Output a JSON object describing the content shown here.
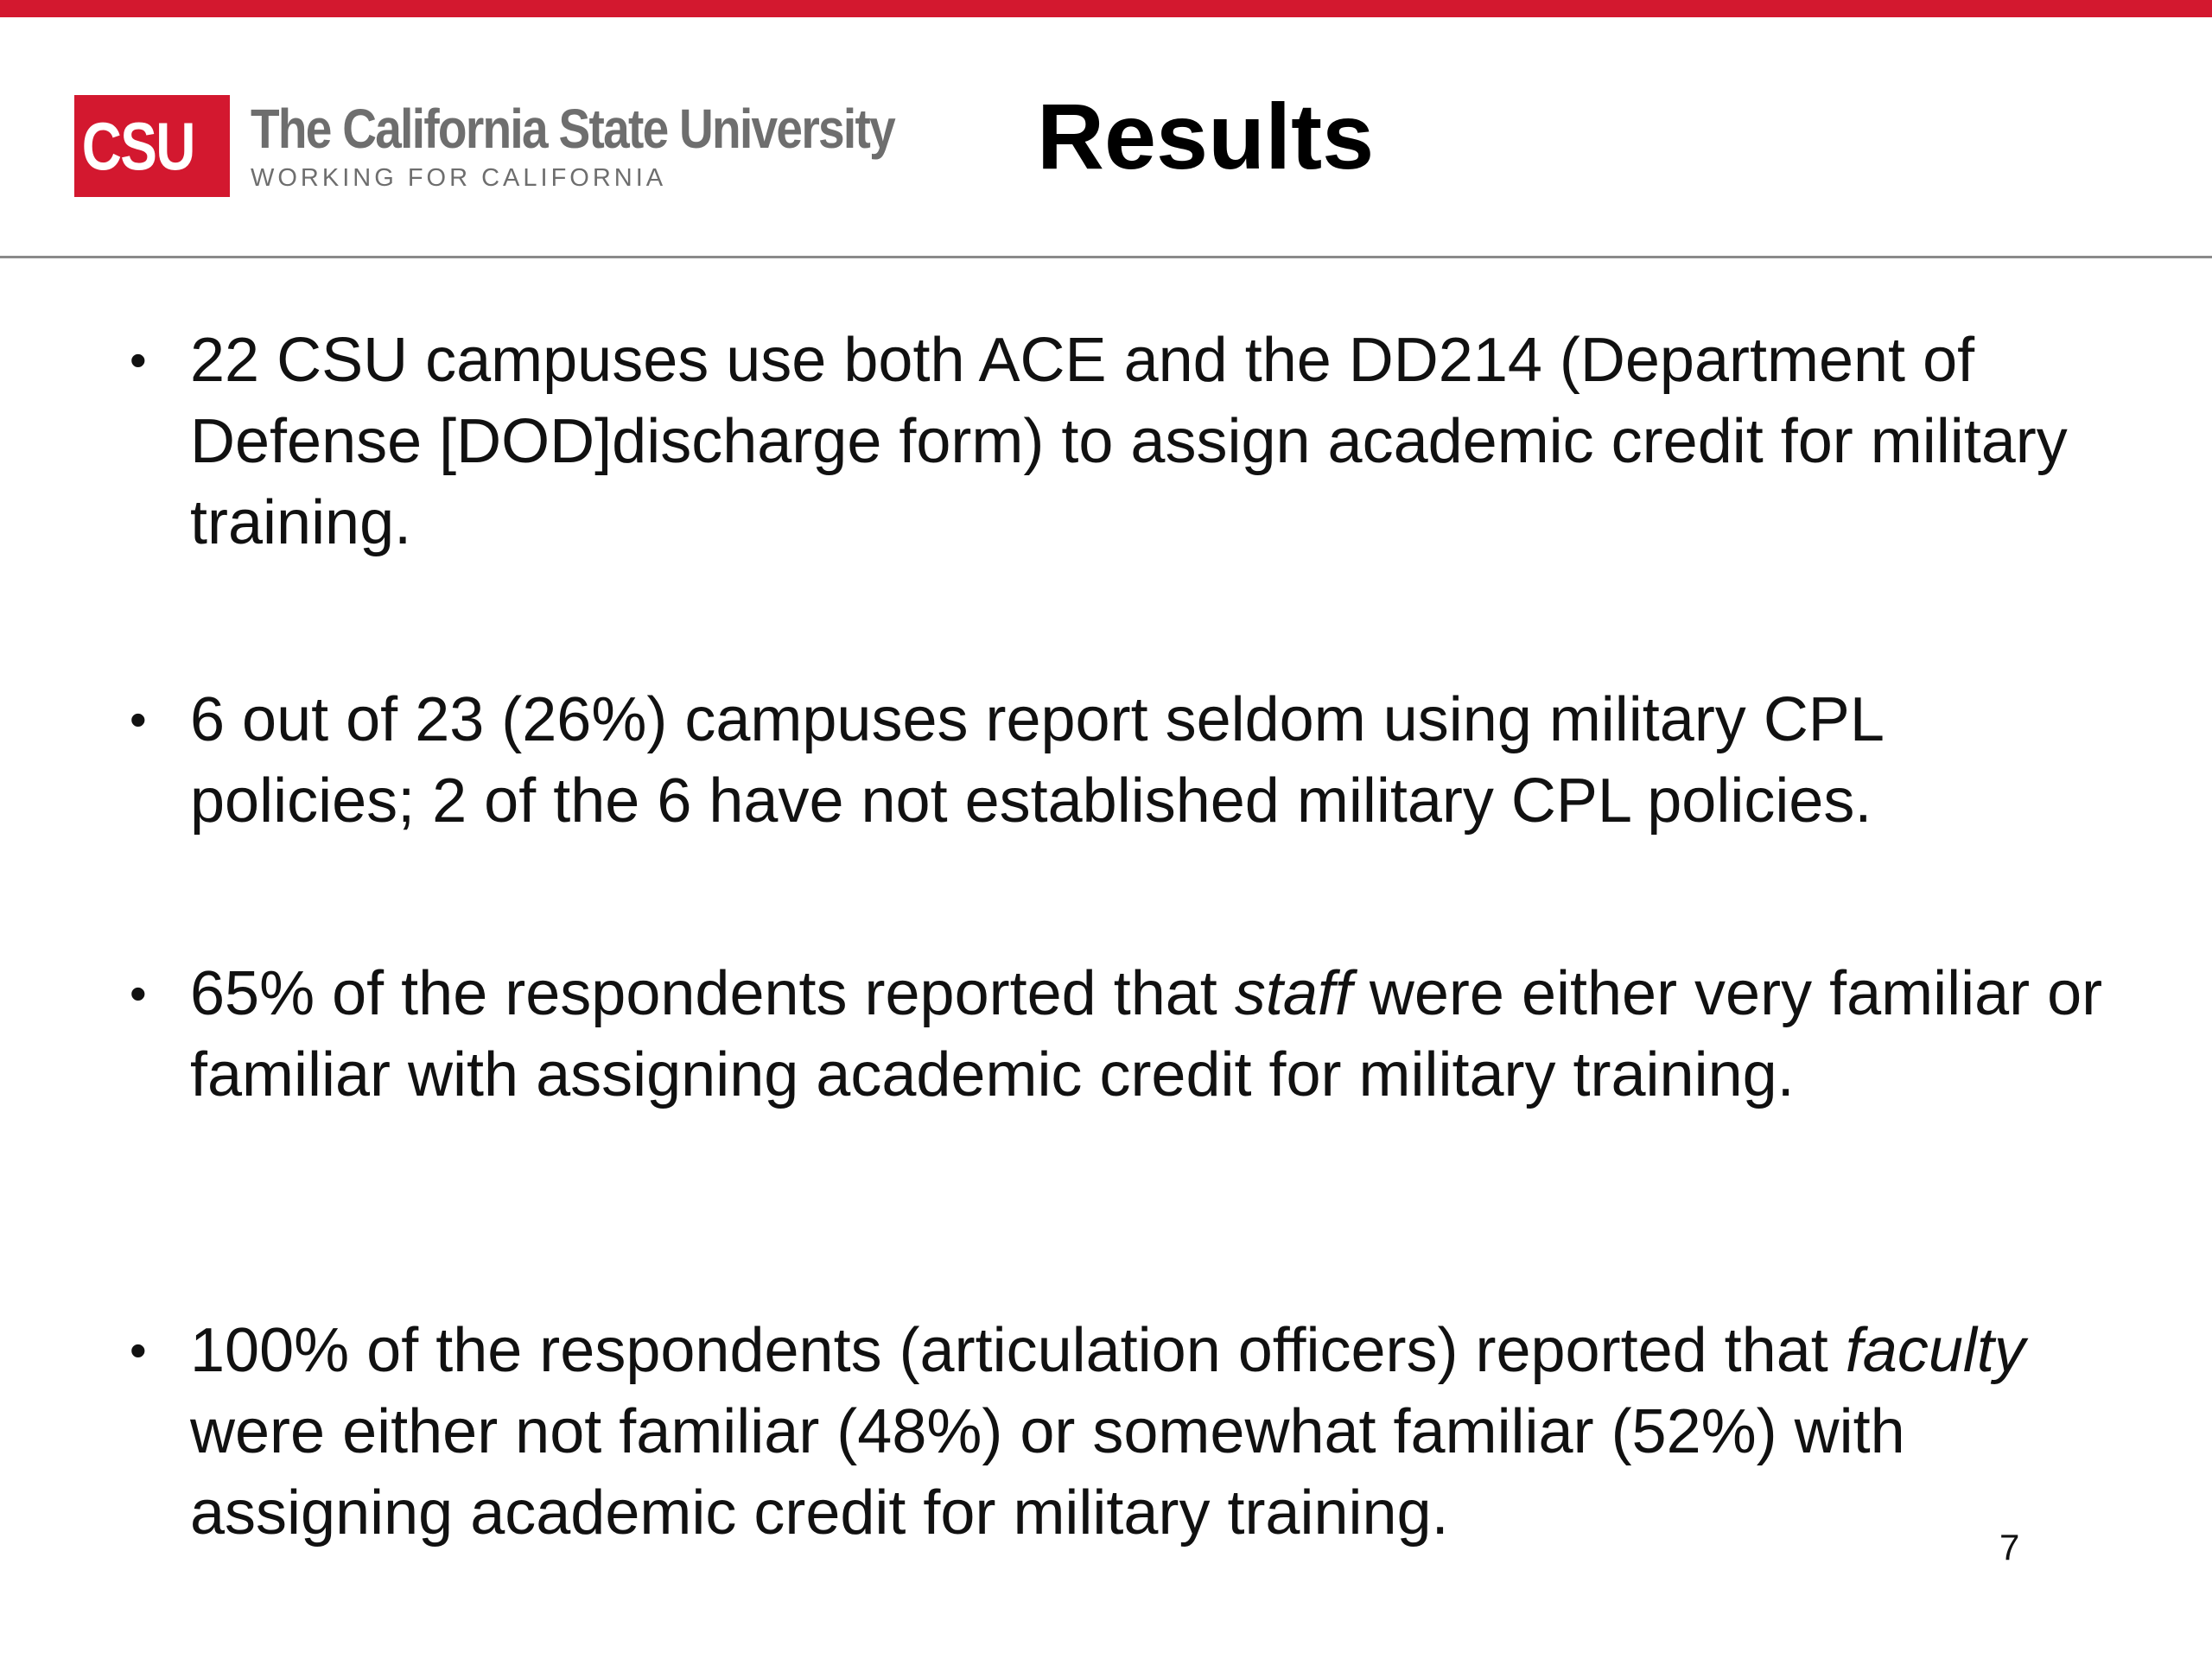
{
  "colors": {
    "accent_red": "#d3182f",
    "logo_gray": "#6e6e6e",
    "rule_gray": "#8a8a8a"
  },
  "logo": {
    "mark": "CSU",
    "name": "The California State University",
    "tagline": "WORKING FOR CALIFORNIA"
  },
  "title": "Results",
  "bullets": [
    {
      "before": "22 CSU campuses use both ACE and the DD214 (Department of Defense [DOD]discharge form) to assign academic credit for military training.",
      "emphasis": "",
      "after": ""
    },
    {
      "before": "6 out of 23 (26%) campuses report seldom using military CPL policies; 2 of the 6 have not established military CPL policies.",
      "emphasis": "",
      "after": ""
    },
    {
      "before": " 65% of the respondents reported that ",
      "emphasis": "staff",
      "after": " were either very familiar or familiar with assigning academic credit for military training."
    },
    {
      "before": "100% of the respondents (articulation officers) reported that ",
      "emphasis": "faculty",
      "after": " were either not familiar (48%) or somewhat familiar (52%) with assigning academic credit for military training."
    }
  ],
  "page_number": "7"
}
